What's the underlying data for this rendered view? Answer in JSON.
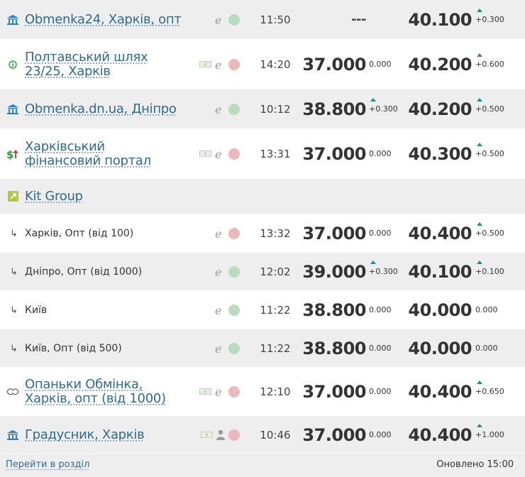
{
  "rows": [
    {
      "icon": "bank-icon",
      "name": "Obmenka24, Харків, опт",
      "flags": [
        "ie-icon",
        "status-dot-green"
      ],
      "time": "11:50",
      "buy": "---",
      "buy_delta": "",
      "sell": "40.100",
      "sell_delta": "+0.300"
    },
    {
      "icon": "info-icon",
      "name": "Полтавський шлях 23/25, Харків",
      "flags": [
        "cash-icon",
        "ie-icon",
        "status-dot-red"
      ],
      "time": "14:20",
      "buy": "37.000",
      "buy_delta": "0.000",
      "sell": "40.200",
      "sell_delta": "+0.600"
    },
    {
      "icon": "bank-icon",
      "name": "Obmenka.dn.ua, Дніпро",
      "flags": [
        "ie-icon",
        "status-dot-green"
      ],
      "time": "10:12",
      "buy": "38.800",
      "buy_delta": "+0.300",
      "sell": "40.200",
      "sell_delta": "+0.500"
    },
    {
      "icon": "dollar-up-icon",
      "name": "Харківський фінансовий портал",
      "flags": [
        "cash-icon",
        "ie-icon",
        "status-dot-red"
      ],
      "time": "13:31",
      "buy": "37.000",
      "buy_delta": "0.000",
      "sell": "40.300",
      "sell_delta": "+0.500"
    },
    {
      "icon": "kit-group-icon",
      "name": "Kit Group",
      "group": true
    },
    {
      "sub": true,
      "name": "Харків, Опт (від 100)",
      "flags": [
        "ie-icon",
        "status-dot-red"
      ],
      "time": "13:32",
      "buy": "37.000",
      "buy_delta": "0.000",
      "sell": "40.400",
      "sell_delta": "+0.500"
    },
    {
      "sub": true,
      "name": "Дніпро, Опт (від 1000)",
      "flags": [
        "ie-icon",
        "status-dot-green"
      ],
      "time": "12:02",
      "buy": "39.000",
      "buy_delta": "+0.300",
      "sell": "40.100",
      "sell_delta": "+0.100"
    },
    {
      "sub": true,
      "name": "Київ",
      "flags": [
        "ie-icon",
        "status-dot-green"
      ],
      "time": "11:22",
      "buy": "38.800",
      "buy_delta": "0.000",
      "sell": "40.000",
      "sell_delta": "0.000"
    },
    {
      "sub": true,
      "name": "Київ, Опт (від 500)",
      "flags": [
        "ie-icon",
        "status-dot-green"
      ],
      "time": "11:22",
      "buy": "38.800",
      "buy_delta": "0.000",
      "sell": "40.000",
      "sell_delta": "0.000"
    },
    {
      "icon": "handshake-icon",
      "name": "Опаньки Обмінка, Харків, опт (від 1000)",
      "flags": [
        "cash-icon",
        "ie-icon",
        "status-dot-red"
      ],
      "time": "12:10",
      "buy": "37.000",
      "buy_delta": "0.000",
      "sell": "40.400",
      "sell_delta": "+0.650"
    },
    {
      "icon": "bank-icon",
      "name": "Градусник, Харків",
      "flags": [
        "cash-icon",
        "person-icon",
        "status-dot-red"
      ],
      "time": "10:46",
      "buy": "37.000",
      "buy_delta": "0.000",
      "sell": "40.400",
      "sell_delta": "+1.000"
    }
  ],
  "footer": {
    "link": "Перейти в розділ",
    "updated": "Оновлено 15:00"
  },
  "colors": {
    "link": "#2f6b8a",
    "up_arrow": "#1e8f8a",
    "dot_green": "#b9dcc0",
    "dot_red": "#edb8bb",
    "row_alt": "#eeeeee"
  }
}
